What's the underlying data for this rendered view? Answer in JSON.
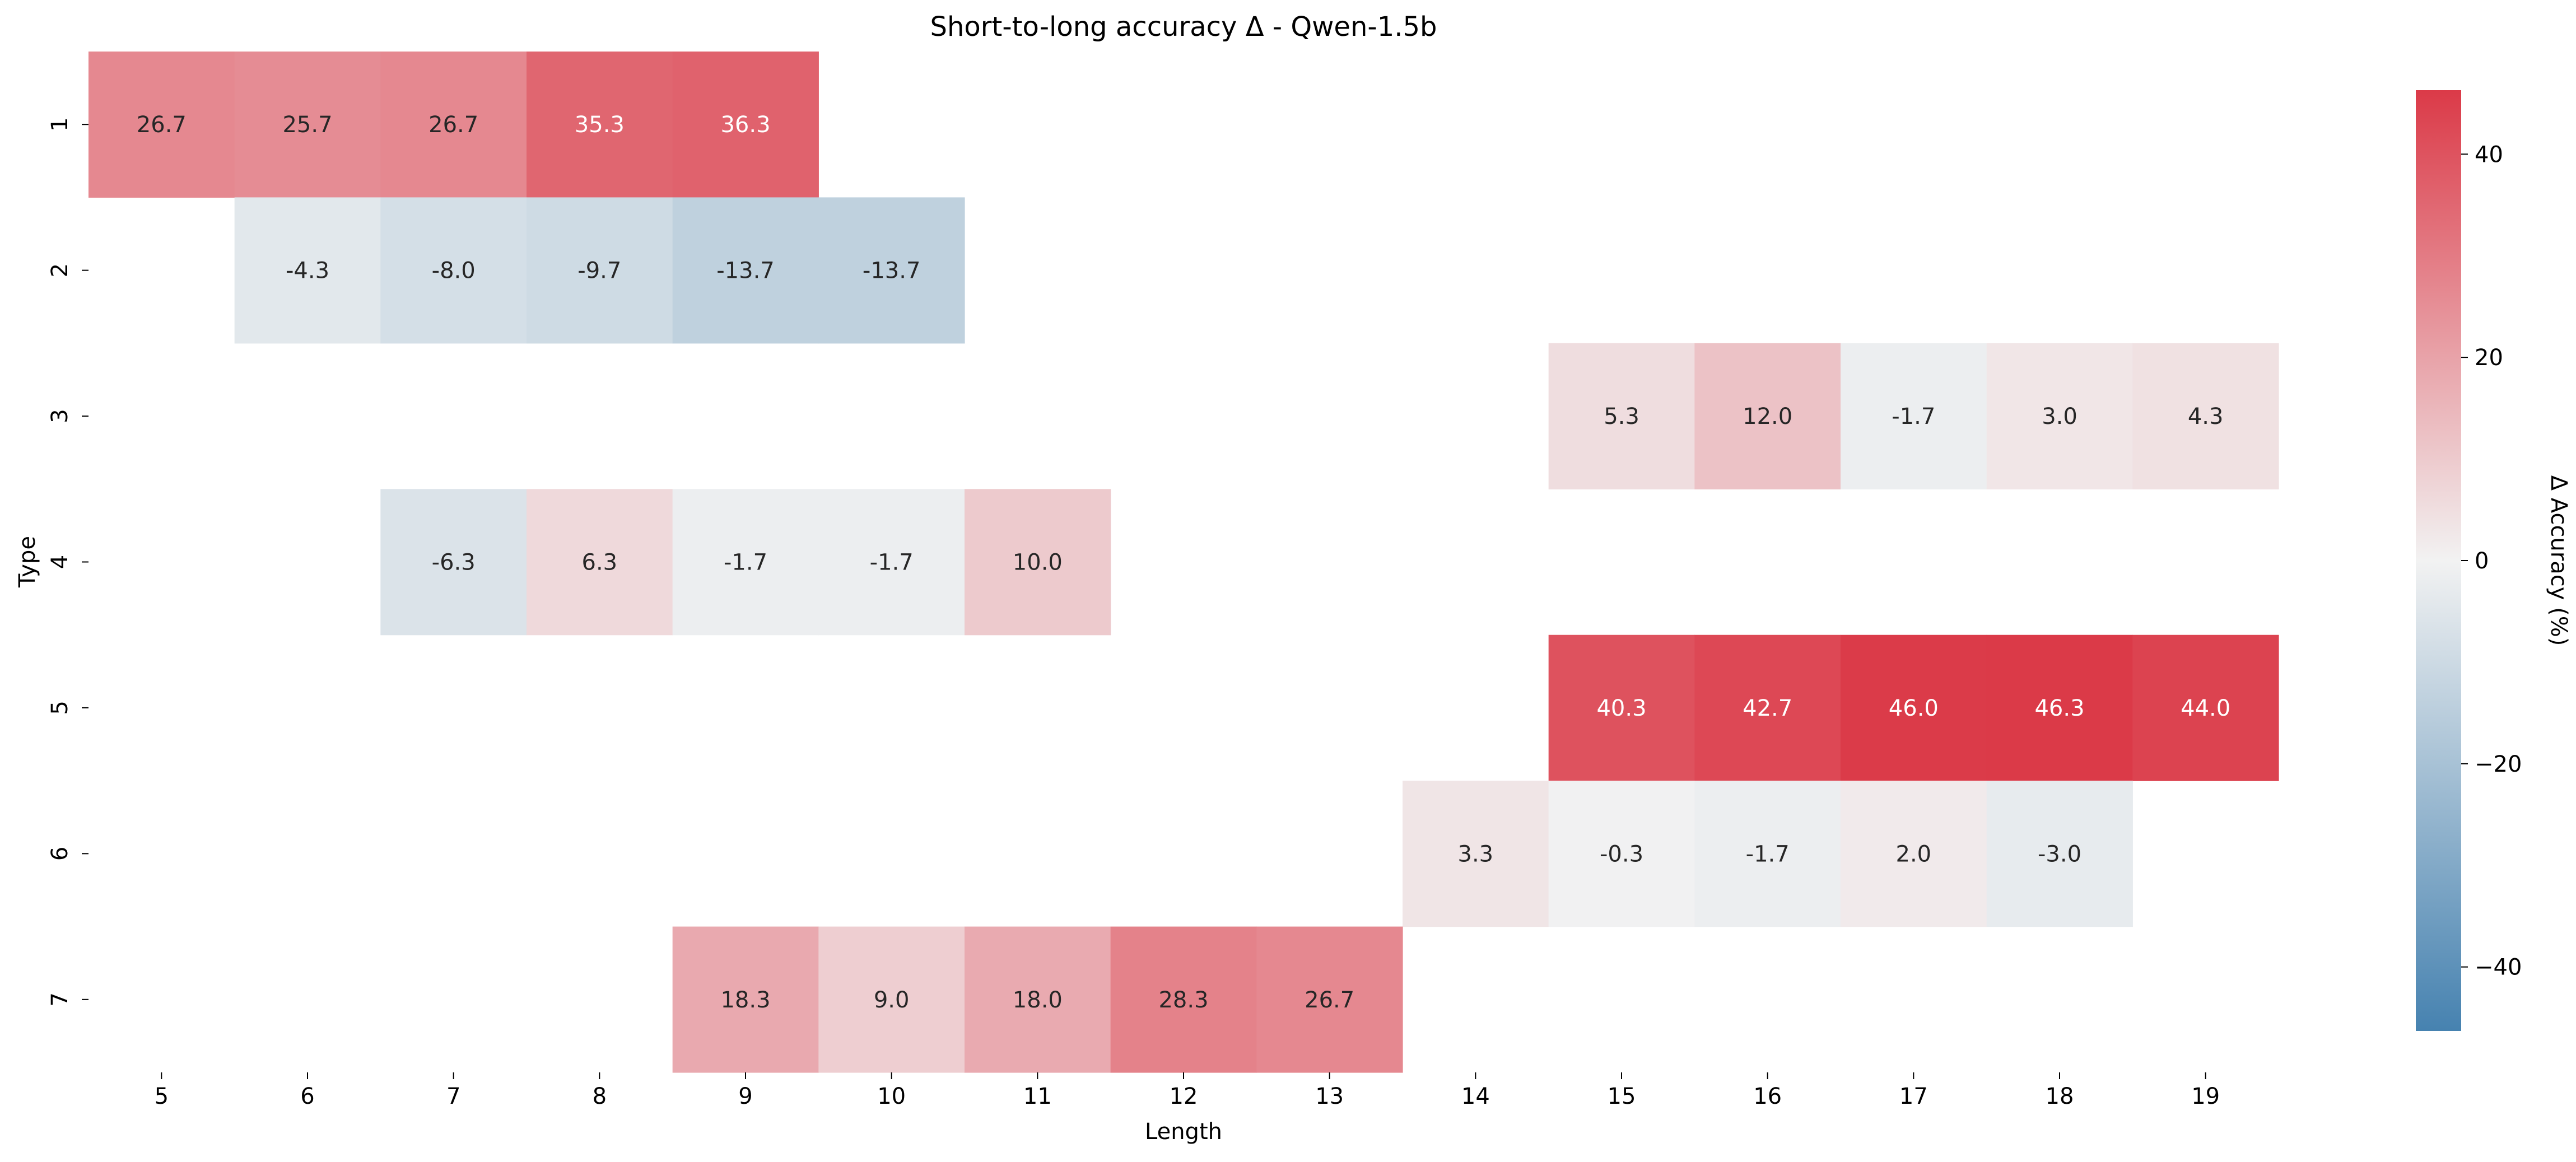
{
  "chart_data": {
    "type": "heatmap",
    "title": "Short-to-long accuracy Δ - Qwen-1.5b",
    "xlabel": "Length",
    "ylabel": "Type",
    "colorbar_label": "Δ Accuracy (%)",
    "x": [
      5,
      6,
      7,
      8,
      9,
      10,
      11,
      12,
      13,
      14,
      15,
      16,
      17,
      18,
      19
    ],
    "y": [
      1,
      2,
      3,
      4,
      5,
      6,
      7
    ],
    "values": [
      [
        26.7,
        25.7,
        26.7,
        35.3,
        36.3,
        null,
        null,
        null,
        null,
        null,
        null,
        null,
        null,
        null,
        null
      ],
      [
        null,
        -4.3,
        -8.0,
        -9.7,
        -13.7,
        -13.7,
        null,
        null,
        null,
        null,
        null,
        null,
        null,
        null,
        null
      ],
      [
        null,
        null,
        null,
        null,
        null,
        null,
        null,
        null,
        null,
        null,
        5.3,
        12.0,
        -1.7,
        3.0,
        4.3
      ],
      [
        null,
        null,
        -6.3,
        6.3,
        -1.7,
        -1.7,
        10.0,
        null,
        null,
        null,
        null,
        null,
        null,
        null,
        null
      ],
      [
        null,
        null,
        null,
        null,
        null,
        null,
        null,
        null,
        null,
        null,
        40.3,
        42.7,
        46.0,
        46.3,
        44.0
      ],
      [
        null,
        null,
        null,
        null,
        null,
        null,
        null,
        null,
        null,
        3.3,
        -0.3,
        -1.7,
        2.0,
        -3.0,
        null
      ],
      [
        null,
        null,
        null,
        null,
        18.3,
        9.0,
        18.0,
        28.3,
        26.7,
        null,
        null,
        null,
        null,
        null,
        null
      ]
    ],
    "value_labels": [
      [
        "26.7",
        "25.7",
        "26.7",
        "35.3",
        "36.3",
        "",
        "",
        "",
        "",
        "",
        "",
        "",
        "",
        "",
        ""
      ],
      [
        "",
        "-4.3",
        "-8.0",
        "-9.7",
        "-13.7",
        "-13.7",
        "",
        "",
        "",
        "",
        "",
        "",
        "",
        "",
        ""
      ],
      [
        "",
        "",
        "",
        "",
        "",
        "",
        "",
        "",
        "",
        "",
        "5.3",
        "12.0",
        "-1.7",
        "3.0",
        "4.3"
      ],
      [
        "",
        "",
        "-6.3",
        "6.3",
        "-1.7",
        "-1.7",
        "10.0",
        "",
        "",
        "",
        "",
        "",
        "",
        "",
        ""
      ],
      [
        "",
        "",
        "",
        "",
        "",
        "",
        "",
        "",
        "",
        "",
        "40.3",
        "42.7",
        "46.0",
        "46.3",
        "44.0"
      ],
      [
        "",
        "",
        "",
        "",
        "",
        "",
        "",
        "",
        "",
        "3.3",
        "-0.3",
        "-1.7",
        "2.0",
        "-3.0",
        ""
      ],
      [
        "",
        "",
        "",
        "",
        "18.3",
        "9.0",
        "18.0",
        "28.3",
        "26.7",
        "",
        "",
        "",
        "",
        "",
        ""
      ]
    ],
    "vmin": -46.3,
    "vmax": 46.3,
    "colorbar_ticks": [
      40,
      20,
      0,
      -20,
      -40
    ],
    "colorbar_tick_labels": [
      "40",
      "20",
      "0",
      "−20",
      "−40"
    ],
    "colormap": {
      "negative": "#4682b0",
      "center": "#f2f2f2",
      "positive": "#db3a48"
    },
    "annotation_colors": {
      "light": "#ffffff",
      "dark": "#262626"
    },
    "legend": "colorbar-right"
  }
}
